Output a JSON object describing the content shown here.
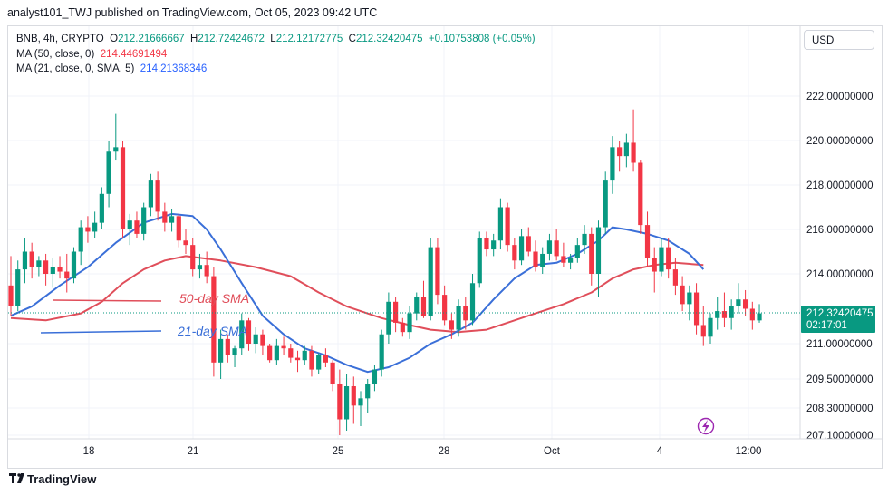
{
  "header": {
    "publisher": "analyst101_TWJ published on TradingView.com, Oct 05, 2023 09:42 UTC"
  },
  "legend": {
    "symbol": "BNB, 4h, CRYPTO",
    "open_label": "O",
    "open": "212.21666667",
    "high_label": "H",
    "high": "212.72424672",
    "low_label": "L",
    "low": "212.12172775",
    "close_label": "C",
    "close": "212.32420475",
    "change": "+0.10753808 (+0.05%)",
    "ma50_label": "MA (50, close, 0)",
    "ma50_value": "214.44691494",
    "ma21_label": "MA (21, close, 0, SMA, 5)",
    "ma21_value": "214.21368346"
  },
  "currency": "USD",
  "footer": {
    "brand": "TradingView"
  },
  "colors": {
    "up": "#089981",
    "down": "#f23645",
    "ma50": "#e04e5a",
    "ma21": "#3a6fd8",
    "grid": "#f0f3fa"
  },
  "chart_data": {
    "type": "candlestick",
    "interval": "4h",
    "x_ticks": [
      "18",
      "21",
      "25",
      "28",
      "Oct",
      "4",
      "12:00"
    ],
    "y_ticks": [
      "222.00000000",
      "220.00000000",
      "218.00000000",
      "216.00000000",
      "214.00000000",
      "211.00000000",
      "209.50000000",
      "208.30000000",
      "207.10000000"
    ],
    "last_price": "212.32420475",
    "countdown": "02:17:01",
    "annotations": {
      "ma50": "50-day SMA",
      "ma21": "21-day SMA"
    },
    "candles": [
      [
        213.5,
        214.8,
        212.2,
        212.6
      ],
      [
        212.6,
        214.6,
        212.4,
        214.2
      ],
      [
        214.2,
        215.6,
        213.6,
        215.0
      ],
      [
        215.0,
        215.4,
        213.8,
        214.3
      ],
      [
        214.3,
        214.8,
        213.9,
        214.6
      ],
      [
        214.6,
        214.9,
        213.5,
        214.0
      ],
      [
        214.0,
        214.7,
        213.4,
        214.3
      ],
      [
        214.3,
        214.8,
        213.8,
        214.1
      ],
      [
        214.1,
        214.9,
        213.2,
        213.8
      ],
      [
        213.8,
        215.2,
        213.6,
        215.0
      ],
      [
        215.0,
        216.4,
        214.4,
        216.1
      ],
      [
        216.1,
        216.6,
        215.4,
        215.9
      ],
      [
        215.9,
        216.8,
        215.6,
        216.3
      ],
      [
        216.3,
        217.9,
        216.0,
        217.6
      ],
      [
        217.6,
        220.0,
        217.0,
        219.5
      ],
      [
        219.5,
        221.2,
        219.1,
        219.7
      ],
      [
        219.7,
        220.0,
        215.6,
        216.0
      ],
      [
        216.0,
        216.7,
        215.3,
        216.4
      ],
      [
        216.4,
        216.8,
        215.6,
        215.8
      ],
      [
        215.8,
        217.2,
        215.5,
        217.0
      ],
      [
        217.0,
        218.5,
        216.6,
        218.2
      ],
      [
        218.2,
        218.6,
        216.4,
        216.8
      ],
      [
        216.8,
        217.2,
        215.9,
        216.3
      ],
      [
        216.3,
        216.9,
        215.9,
        216.6
      ],
      [
        216.6,
        216.7,
        215.2,
        215.5
      ],
      [
        215.5,
        216.0,
        214.9,
        215.3
      ],
      [
        215.3,
        215.6,
        213.9,
        214.2
      ],
      [
        214.2,
        214.9,
        213.8,
        214.4
      ],
      [
        214.4,
        215.0,
        213.6,
        213.9
      ],
      [
        213.9,
        214.3,
        209.6,
        210.2
      ],
      [
        210.2,
        211.6,
        209.5,
        211.2
      ],
      [
        211.2,
        211.4,
        210.2,
        210.5
      ],
      [
        210.5,
        210.9,
        210.0,
        210.8
      ],
      [
        210.8,
        212.3,
        210.5,
        212.0
      ],
      [
        212.0,
        212.1,
        210.7,
        211.0
      ],
      [
        211.0,
        211.7,
        210.6,
        211.4
      ],
      [
        211.4,
        211.6,
        210.5,
        210.9
      ],
      [
        210.9,
        211.0,
        210.2,
        210.3
      ],
      [
        210.3,
        211.2,
        210.1,
        210.9
      ],
      [
        210.9,
        211.3,
        210.5,
        210.8
      ],
      [
        210.8,
        211.0,
        210.2,
        210.4
      ],
      [
        210.4,
        210.7,
        209.8,
        210.3
      ],
      [
        210.3,
        210.9,
        210.1,
        210.7
      ],
      [
        210.7,
        210.9,
        209.6,
        209.9
      ],
      [
        209.9,
        210.6,
        209.7,
        210.5
      ],
      [
        210.5,
        210.8,
        210.0,
        210.2
      ],
      [
        210.2,
        210.3,
        209.0,
        209.3
      ],
      [
        209.3,
        209.9,
        207.1,
        207.8
      ],
      [
        207.8,
        209.7,
        207.3,
        209.2
      ],
      [
        209.2,
        209.6,
        207.6,
        208.4
      ],
      [
        208.4,
        209.0,
        207.5,
        208.7
      ],
      [
        208.7,
        209.5,
        208.1,
        209.3
      ],
      [
        209.3,
        210.1,
        209.0,
        209.9
      ],
      [
        209.9,
        211.6,
        209.6,
        211.4
      ],
      [
        211.4,
        213.2,
        211.0,
        212.8
      ],
      [
        212.8,
        213.0,
        211.5,
        211.9
      ],
      [
        211.9,
        212.1,
        211.3,
        211.5
      ],
      [
        211.5,
        212.6,
        211.2,
        212.3
      ],
      [
        212.3,
        213.2,
        212.0,
        213.0
      ],
      [
        213.0,
        213.7,
        212.1,
        212.2
      ],
      [
        212.2,
        215.6,
        212.0,
        215.2
      ],
      [
        215.2,
        215.6,
        212.7,
        213.1
      ],
      [
        213.1,
        213.5,
        211.8,
        212.0
      ],
      [
        212.0,
        212.3,
        211.2,
        211.6
      ],
      [
        211.6,
        212.9,
        211.3,
        212.6
      ],
      [
        212.6,
        213.0,
        211.6,
        212.0
      ],
      [
        212.0,
        214.0,
        211.8,
        213.6
      ],
      [
        213.6,
        215.9,
        213.4,
        215.6
      ],
      [
        215.6,
        215.9,
        214.8,
        215.1
      ],
      [
        215.1,
        215.8,
        214.8,
        215.5
      ],
      [
        215.5,
        217.4,
        215.1,
        217.0
      ],
      [
        217.0,
        217.2,
        215.0,
        215.3
      ],
      [
        215.3,
        215.6,
        214.2,
        214.6
      ],
      [
        214.6,
        216.0,
        214.4,
        215.7
      ],
      [
        215.7,
        216.1,
        214.8,
        215.0
      ],
      [
        215.0,
        215.5,
        214.1,
        214.3
      ],
      [
        214.3,
        215.2,
        214.0,
        214.9
      ],
      [
        214.9,
        215.8,
        214.6,
        215.5
      ],
      [
        215.5,
        216.0,
        214.6,
        214.8
      ],
      [
        214.8,
        215.4,
        214.3,
        214.5
      ],
      [
        214.5,
        214.9,
        214.2,
        214.7
      ],
      [
        214.7,
        215.6,
        214.5,
        215.3
      ],
      [
        215.3,
        216.2,
        214.9,
        215.8
      ],
      [
        215.8,
        216.1,
        213.5,
        214.0
      ],
      [
        214.0,
        216.4,
        213.0,
        216.1
      ],
      [
        216.1,
        218.6,
        215.8,
        218.2
      ],
      [
        218.2,
        220.2,
        217.6,
        219.7
      ],
      [
        219.7,
        220.0,
        218.6,
        219.3
      ],
      [
        219.3,
        220.3,
        218.8,
        219.9
      ],
      [
        219.9,
        221.4,
        218.6,
        219.0
      ],
      [
        219.0,
        219.1,
        215.8,
        216.2
      ],
      [
        216.2,
        216.8,
        214.3,
        214.7
      ],
      [
        214.7,
        215.2,
        213.2,
        214.1
      ],
      [
        214.1,
        215.6,
        213.9,
        215.2
      ],
      [
        215.2,
        215.6,
        213.8,
        214.2
      ],
      [
        214.2,
        214.7,
        213.1,
        213.5
      ],
      [
        213.5,
        213.9,
        212.4,
        212.7
      ],
      [
        212.7,
        213.5,
        212.0,
        213.2
      ],
      [
        213.2,
        213.6,
        211.4,
        211.8
      ],
      [
        211.8,
        212.6,
        210.9,
        211.3
      ],
      [
        211.3,
        212.3,
        211.0,
        212.1
      ],
      [
        212.1,
        213.0,
        211.6,
        212.4
      ],
      [
        212.4,
        213.2,
        211.7,
        212.1
      ],
      [
        212.1,
        212.9,
        211.6,
        212.6
      ],
      [
        212.6,
        213.6,
        212.3,
        212.9
      ],
      [
        212.9,
        213.3,
        212.2,
        212.5
      ],
      [
        212.5,
        212.8,
        211.6,
        212.0
      ],
      [
        212.0,
        212.7,
        211.9,
        212.3
      ]
    ],
    "ma21": [
      [
        0,
        212.2
      ],
      [
        3,
        212.6
      ],
      [
        7,
        213.5
      ],
      [
        11,
        214.3
      ],
      [
        15,
        215.4
      ],
      [
        19,
        216.3
      ],
      [
        23,
        216.7
      ],
      [
        26,
        216.6
      ],
      [
        28,
        216.0
      ],
      [
        30,
        215.1
      ],
      [
        33,
        213.6
      ],
      [
        36,
        212.2
      ],
      [
        39,
        211.4
      ],
      [
        42,
        210.8
      ],
      [
        45,
        210.5
      ],
      [
        48,
        210.1
      ],
      [
        51,
        209.8
      ],
      [
        54,
        210.0
      ],
      [
        57,
        210.4
      ],
      [
        60,
        211.0
      ],
      [
        63,
        211.4
      ],
      [
        66,
        211.9
      ],
      [
        69,
        212.9
      ],
      [
        72,
        213.8
      ],
      [
        75,
        214.4
      ],
      [
        78,
        214.5
      ],
      [
        81,
        214.9
      ],
      [
        84,
        215.5
      ],
      [
        86,
        216.1
      ],
      [
        88,
        216.0
      ],
      [
        91,
        215.8
      ],
      [
        94,
        215.5
      ],
      [
        97,
        214.9
      ],
      [
        99,
        214.2
      ]
    ],
    "ma50": [
      [
        0,
        212.1
      ],
      [
        5,
        212.0
      ],
      [
        10,
        212.3
      ],
      [
        13,
        212.8
      ],
      [
        16,
        213.6
      ],
      [
        19,
        214.2
      ],
      [
        22,
        214.6
      ],
      [
        25,
        214.8
      ],
      [
        30,
        214.6
      ],
      [
        35,
        214.3
      ],
      [
        40,
        213.9
      ],
      [
        44,
        213.2
      ],
      [
        48,
        212.6
      ],
      [
        53,
        212.1
      ],
      [
        57,
        211.8
      ],
      [
        60,
        211.6
      ],
      [
        64,
        211.5
      ],
      [
        68,
        211.6
      ],
      [
        72,
        212.0
      ],
      [
        75,
        212.3
      ],
      [
        79,
        212.7
      ],
      [
        83,
        213.2
      ],
      [
        86,
        213.8
      ],
      [
        89,
        214.2
      ],
      [
        92,
        214.4
      ],
      [
        95,
        214.5
      ],
      [
        99,
        214.4
      ]
    ]
  }
}
